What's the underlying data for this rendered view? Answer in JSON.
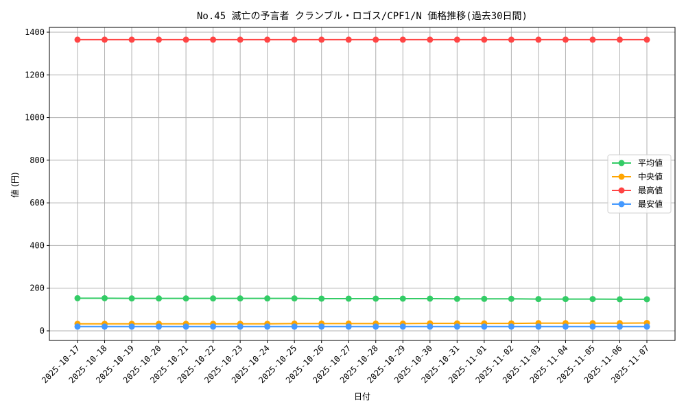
{
  "chart_data": {
    "type": "line",
    "title": "No.45 滅亡の予言者 クランブル・ロゴス/CPF1/N 価格推移(過去30日間)",
    "xlabel": "日付",
    "ylabel": "値 (円)",
    "ylim": [
      -45,
      1430
    ],
    "yticks": [
      0,
      200,
      400,
      600,
      800,
      1000,
      1200,
      1400
    ],
    "grid": true,
    "legend_position": "center right",
    "categories": [
      "2025-10-17",
      "2025-10-18",
      "2025-10-19",
      "2025-10-20",
      "2025-10-21",
      "2025-10-22",
      "2025-10-23",
      "2025-10-24",
      "2025-10-25",
      "2025-10-26",
      "2025-10-27",
      "2025-10-28",
      "2025-10-29",
      "2025-10-30",
      "2025-10-31",
      "2025-11-01",
      "2025-11-02",
      "2025-11-03",
      "2025-11-04",
      "2025-11-05",
      "2025-11-06",
      "2025-11-07"
    ],
    "series": [
      {
        "name": "平均値",
        "color": "#33cc66",
        "values": [
          153,
          153,
          152,
          152,
          152,
          152,
          152,
          152,
          152,
          151,
          151,
          151,
          151,
          151,
          150,
          150,
          150,
          149,
          149,
          149,
          148,
          148
        ]
      },
      {
        "name": "中央値",
        "color": "#ffa500",
        "values": [
          33,
          33,
          33,
          33,
          33,
          33,
          33,
          33,
          34,
          34,
          34,
          34,
          34,
          35,
          35,
          35,
          35,
          36,
          36,
          36,
          36,
          37
        ]
      },
      {
        "name": "最高値",
        "color": "#ff4444",
        "values": [
          1365,
          1365,
          1365,
          1365,
          1365,
          1365,
          1365,
          1365,
          1365,
          1365,
          1365,
          1365,
          1365,
          1365,
          1365,
          1365,
          1365,
          1365,
          1365,
          1365,
          1365,
          1365
        ]
      },
      {
        "name": "最安値",
        "color": "#4499ff",
        "values": [
          20,
          20,
          20,
          20,
          20,
          20,
          20,
          20,
          20,
          20,
          20,
          20,
          20,
          20,
          20,
          20,
          20,
          20,
          20,
          20,
          20,
          20
        ]
      }
    ]
  }
}
